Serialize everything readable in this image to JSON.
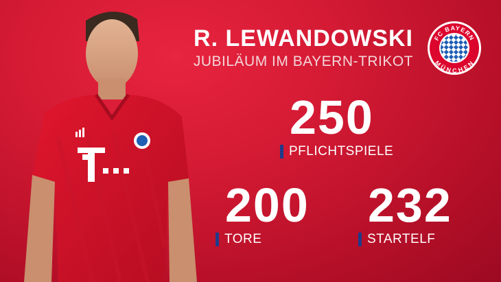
{
  "header": {
    "name": "R. LEWANDOWSKI",
    "subtitle": "JUBILÄUM IM BAYERN-TRIKOT"
  },
  "crest": {
    "top_text": "FC BAYERN",
    "bottom_text": "MÜNCHEN",
    "icon": "fc-bayern-crest-icon"
  },
  "stats": [
    {
      "value": "250",
      "label": "PFLICHTSPIELE"
    },
    {
      "value": "200",
      "label": "TORE"
    },
    {
      "value": "232",
      "label": "STARTELF"
    }
  ],
  "colors": {
    "background": "#d41a34",
    "accent_bar": "#1f3a8a",
    "text": "#ffffff"
  }
}
